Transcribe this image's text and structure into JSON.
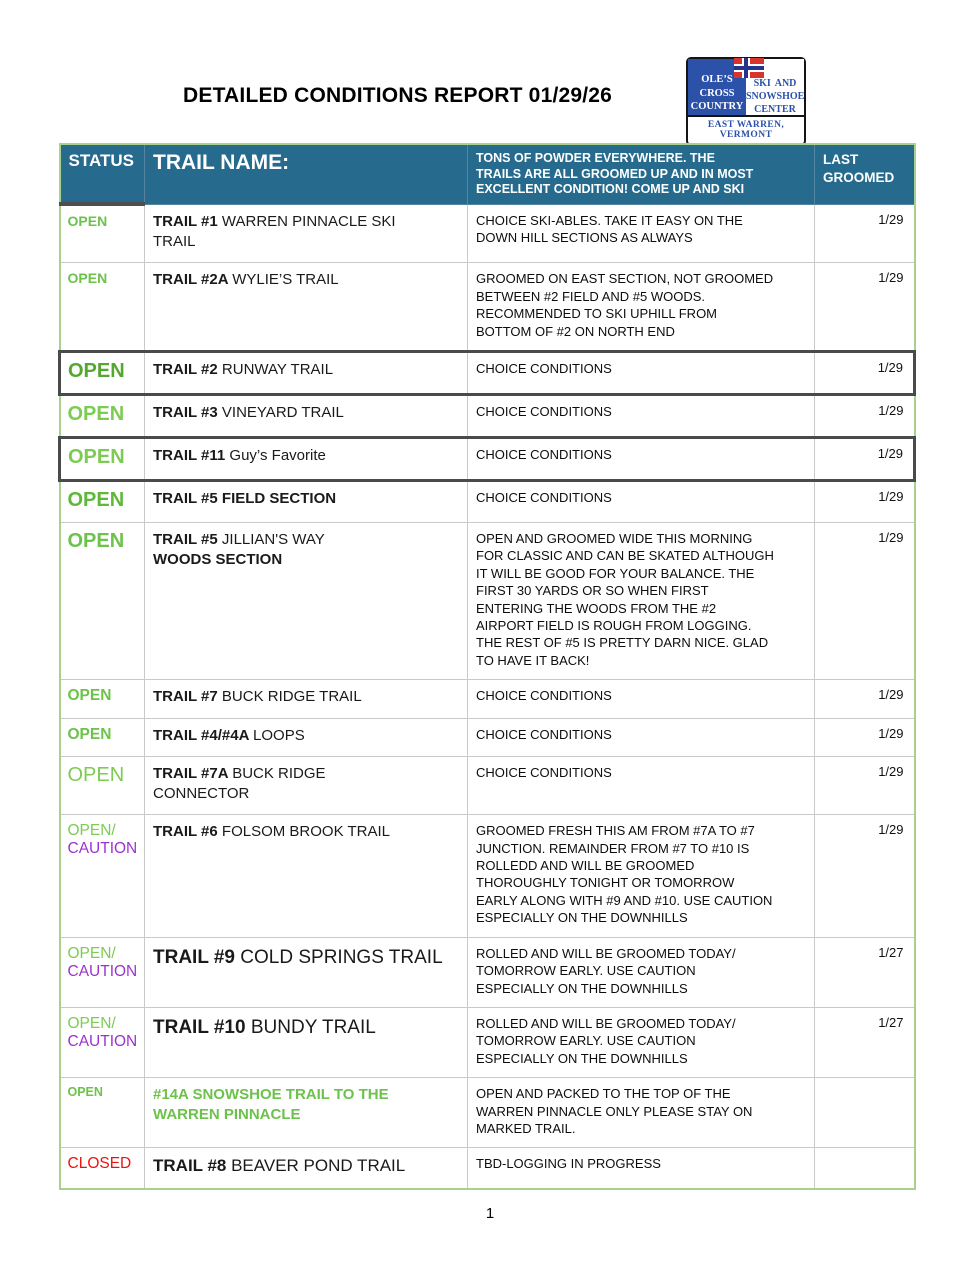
{
  "page": {
    "title": "DETAILED CONDITIONS REPORT 01/29/26",
    "page_number": "1"
  },
  "logo": {
    "left_lines": [
      "OLE’S",
      "CROSS",
      "COUNTRY"
    ],
    "right_lines": [
      "SKI AND",
      "SNOWSHOE",
      "CENTER"
    ],
    "bottom": "EAST WARREN, VERMONT",
    "flag_icon": "norwegian-flag"
  },
  "colors": {
    "header_bg": "#266b8d",
    "table_outline": "#a9d18e",
    "grid_line": "#c9c9c9",
    "highlight_border": "#4a4a4a",
    "open_green": "#6cc24a",
    "open_green_dark": "#55a82f",
    "open_green_light": "#7ccb53",
    "caution_purple": "#9b32cf",
    "closed_red": "#ee1111",
    "logo_blue": "#2b51a8",
    "flag_red": "#d6342c"
  },
  "table": {
    "headers": {
      "status": "STATUS",
      "name": "TRAIL NAME:",
      "comment": "TONS OF POWDER EVERYWHERE. THE\nTRAILS ARE ALL GROOMED UP AND IN MOST\nEXCELLENT CONDITION! COME UP AND SKI",
      "last_groomed": "LAST\nGROOMED"
    },
    "rows": [
      {
        "status_lines": [
          {
            "text": "OPEN",
            "color": "#6cc24a"
          }
        ],
        "status_size": "sm",
        "status_bold": true,
        "name_size": "md",
        "name_segments": [
          {
            "t": "TRAIL #1 ",
            "b": true
          },
          {
            "t": "WARREN PINNACLE SKI",
            "b": false
          },
          {
            "br": true
          },
          {
            "t": "TRAIL",
            "b": false
          }
        ],
        "comment": "CHOICE SKI-ABLES. TAKE IT EASY ON THE\nDOWN HILL SECTIONS AS ALWAYS",
        "last_groomed": "1/29",
        "highlight": false
      },
      {
        "status_lines": [
          {
            "text": "OPEN",
            "color": "#6cc24a"
          }
        ],
        "status_size": "sm",
        "status_bold": true,
        "name_size": "md",
        "name_segments": [
          {
            "t": "TRAIL #2A ",
            "b": true
          },
          {
            "t": "WYLIE’S TRAIL",
            "b": false
          }
        ],
        "comment": "GROOMED ON EAST SECTION, NOT GROOMED\nBETWEEN #2 FIELD AND #5 WOODS.\nRECOMMENDED TO SKI UPHILL FROM\nBOTTOM OF #2 ON NORTH END",
        "last_groomed": "1/29",
        "highlight": false
      },
      {
        "status_lines": [
          {
            "text": "OPEN",
            "color": "#55a82f"
          }
        ],
        "status_size": "lg",
        "status_bold": true,
        "name_size": "md",
        "name_segments": [
          {
            "t": "TRAIL #2 ",
            "b": true
          },
          {
            "t": "RUNWAY TRAIL",
            "b": false
          }
        ],
        "comment": "CHOICE CONDITIONS",
        "last_groomed": "1/29",
        "highlight": true
      },
      {
        "status_lines": [
          {
            "text": "OPEN",
            "color": "#7ccb53"
          }
        ],
        "status_size": "lg",
        "status_bold": true,
        "name_size": "md",
        "name_segments": [
          {
            "t": "TRAIL #3 ",
            "b": true
          },
          {
            "t": "VINEYARD TRAIL",
            "b": false
          }
        ],
        "comment": "CHOICE CONDITIONS",
        "last_groomed": "1/29",
        "highlight": false
      },
      {
        "status_lines": [
          {
            "text": "OPEN",
            "color": "#7ccb53"
          }
        ],
        "status_size": "lg",
        "status_bold": true,
        "name_size": "md",
        "name_segments": [
          {
            "t": "TRAIL #11 ",
            "b": true
          },
          {
            "t": "Guy’s Favorite",
            "b": false
          }
        ],
        "comment": "CHOICE CONDITIONS",
        "last_groomed": "1/29",
        "highlight": true
      },
      {
        "status_lines": [
          {
            "text": "OPEN",
            "color": "#5fb83a"
          }
        ],
        "status_size": "lg",
        "status_bold": true,
        "name_size": "md",
        "name_segments": [
          {
            "t": "TRAIL #5 FIELD SECTION",
            "b": true
          }
        ],
        "comment": "CHOICE CONDITIONS",
        "last_groomed": "1/29",
        "highlight": false
      },
      {
        "status_lines": [
          {
            "text": "OPEN",
            "color": "#6cc24a"
          }
        ],
        "status_size": "lg",
        "status_bold": true,
        "name_size": "md",
        "name_segments": [
          {
            "t": "TRAIL #5 ",
            "b": true
          },
          {
            "t": "JILLIAN'S WAY",
            "b": false
          },
          {
            "br": true
          },
          {
            "t": "WOODS SECTION",
            "b": true
          }
        ],
        "comment": "OPEN AND GROOMED WIDE THIS MORNING\nFOR CLASSIC AND CAN BE SKATED ALTHOUGH\nIT WILL BE GOOD FOR YOUR BALANCE. THE\nFIRST 30 YARDS OR SO WHEN FIRST\nENTERING THE WOODS FROM THE #2\nAIRPORT FIELD IS ROUGH FROM LOGGING.\nTHE REST OF #5 IS PRETTY DARN NICE. GLAD\nTO HAVE IT BACK!",
        "last_groomed": "1/29",
        "highlight": false
      },
      {
        "status_lines": [
          {
            "text": "OPEN",
            "color": "#6cc24a"
          }
        ],
        "status_size": "md",
        "status_bold": true,
        "name_size": "md",
        "name_segments": [
          {
            "t": "TRAIL #7 ",
            "b": true
          },
          {
            "t": "BUCK RIDGE TRAIL",
            "b": false
          }
        ],
        "comment": "CHOICE CONDITIONS",
        "last_groomed": "1/29",
        "highlight": false
      },
      {
        "status_lines": [
          {
            "text": "OPEN",
            "color": "#6cc24a"
          }
        ],
        "status_size": "md",
        "status_bold": true,
        "name_size": "md",
        "name_segments": [
          {
            "t": "TRAIL #4/#4A ",
            "b": true
          },
          {
            "t": "LOOPS",
            "b": false
          }
        ],
        "comment": "CHOICE CONDITIONS",
        "last_groomed": "1/29",
        "highlight": false
      },
      {
        "status_lines": [
          {
            "text": "OPEN",
            "color": "#7ccb53"
          }
        ],
        "status_size": "lg",
        "status_bold": false,
        "name_size": "md",
        "name_segments": [
          {
            "t": "TRAIL #7A ",
            "b": true
          },
          {
            "t": "BUCK RIDGE",
            "b": false
          },
          {
            "br": true
          },
          {
            "t": "CONNECTOR",
            "b": false
          }
        ],
        "comment": "CHOICE CONDITIONS",
        "last_groomed": "1/29",
        "highlight": false
      },
      {
        "status_lines": [
          {
            "text": "OPEN/",
            "color": "#7ccb53"
          },
          {
            "text": "CAUTION",
            "color": "#9b32cf"
          }
        ],
        "status_size": "md",
        "status_bold": false,
        "name_size": "md",
        "name_segments": [
          {
            "t": "TRAIL #6 ",
            "b": true
          },
          {
            "t": "FOLSOM BROOK TRAIL",
            "b": false
          }
        ],
        "comment": "GROOMED FRESH THIS AM FROM #7A TO #7\nJUNCTION. REMAINDER FROM #7 TO #10 IS\nROLLEDD AND WILL BE GROOMED\nTHOROUGHLY TONIGHT OR TOMORROW\nEARLY ALONG WITH #9 AND #10. USE CAUTION\nESPECIALLY ON THE DOWNHILLS",
        "last_groomed": "1/29",
        "highlight": false
      },
      {
        "status_lines": [
          {
            "text": "OPEN/",
            "color": "#7ccb53"
          },
          {
            "text": "CAUTION",
            "color": "#9b32cf"
          }
        ],
        "status_size": "md",
        "status_bold": false,
        "name_size": "lg",
        "name_segments": [
          {
            "t": "TRAIL #9 ",
            "b": true
          },
          {
            "t": "COLD SPRINGS TRAIL",
            "b": false
          }
        ],
        "comment": "ROLLED AND WILL BE GROOMED TODAY/\nTOMORROW EARLY. USE CAUTION\nESPECIALLY ON THE DOWNHILLS",
        "last_groomed": "1/27",
        "highlight": false
      },
      {
        "status_lines": [
          {
            "text": "OPEN/",
            "color": "#7ccb53"
          },
          {
            "text": "CAUTION",
            "color": "#9b32cf"
          }
        ],
        "status_size": "md",
        "status_bold": false,
        "name_size": "lg",
        "name_segments": [
          {
            "t": "TRAIL #10 ",
            "b": true
          },
          {
            "t": "BUNDY TRAIL",
            "b": false
          }
        ],
        "comment": "ROLLED AND WILL BE GROOMED TODAY/\nTOMORROW EARLY. USE CAUTION\nESPECIALLY ON THE DOWNHILLS",
        "last_groomed": "1/27",
        "highlight": false
      },
      {
        "status_lines": [
          {
            "text": "OPEN",
            "color": "#6cc24a"
          }
        ],
        "status_size": "xs",
        "status_bold": true,
        "name_size": "md",
        "name_color": "#6cc24a",
        "name_segments": [
          {
            "t": "#14A SNOWSHOE TRAIL TO THE",
            "b": true
          },
          {
            "br": true
          },
          {
            "t": "WARREN PINNACLE",
            "b": true
          }
        ],
        "comment": "OPEN AND PACKED TO THE TOP OF THE\nWARREN PINNACLE ONLY PLEASE STAY ON\nMARKED TRAIL.",
        "last_groomed": "",
        "highlight": false
      },
      {
        "status_lines": [
          {
            "text": "CLOSED",
            "color": "#ee1111"
          }
        ],
        "status_size": "md",
        "status_bold": false,
        "name_size": "md2",
        "name_segments": [
          {
            "t": "TRAIL #8 ",
            "b": true
          },
          {
            "t": "BEAVER POND TRAIL",
            "b": false
          }
        ],
        "comment": "TBD-LOGGING IN PROGRESS",
        "last_groomed": "",
        "highlight": false
      }
    ]
  }
}
